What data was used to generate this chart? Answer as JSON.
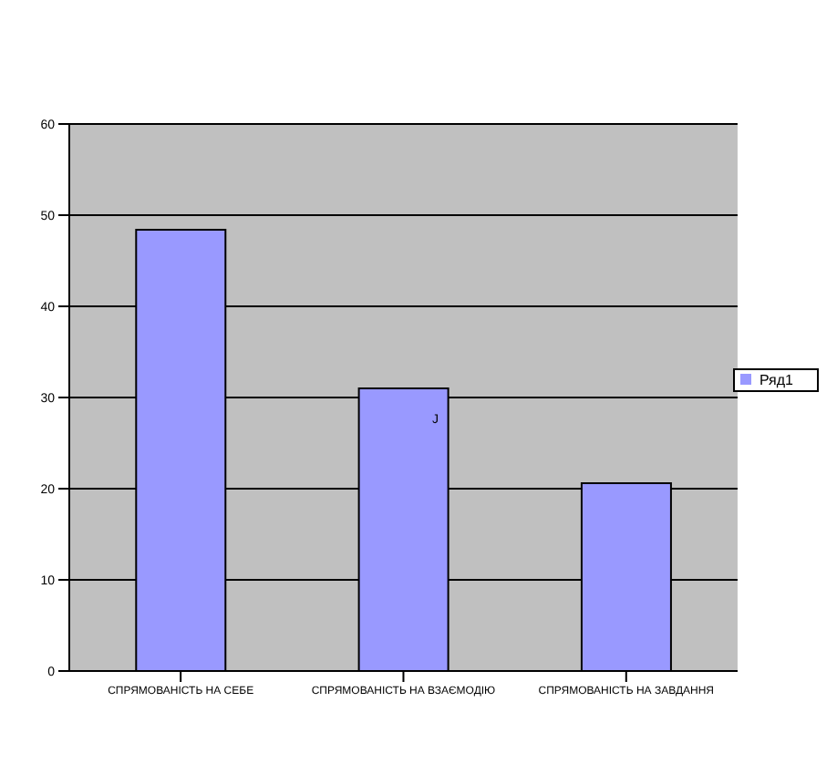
{
  "chart_data": {
    "type": "bar",
    "categories": [
      "СПРЯМОВАНІСТЬ НА СЕБЕ",
      "СПРЯМОВАНІСТЬ НА ВЗАЄМОДІЮ",
      "СПРЯМОВАНІСТЬ НА ЗАВДАННЯ"
    ],
    "series": [
      {
        "name": "Ряд1",
        "color": "#9999ff",
        "values": [
          48.4,
          31,
          20.6
        ]
      }
    ],
    "ylim": [
      0,
      60
    ],
    "yticks": [
      0,
      10,
      20,
      30,
      40,
      50,
      60
    ],
    "grid": "y",
    "legend": "right",
    "annotations": [
      "J"
    ]
  }
}
